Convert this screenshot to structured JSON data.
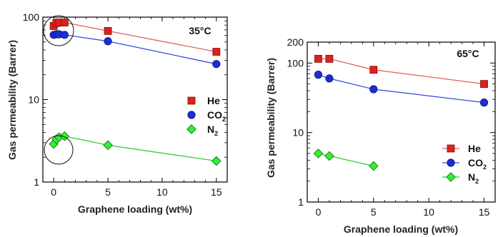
{
  "chart_data": [
    {
      "type": "line",
      "annotation": "35°C",
      "xlabel": "Graphene loading (wt%)",
      "ylabel": "Gas permeability (Barrer)",
      "xlim": [
        -1,
        16
      ],
      "ylim": [
        1,
        100
      ],
      "yscale": "log",
      "xticks": [
        "0",
        "5",
        "10",
        "15"
      ],
      "yticks": [
        "1",
        "10",
        "100"
      ],
      "legend_position": "center-right",
      "legend_lines": false,
      "series": [
        {
          "name": "He",
          "sub": "",
          "marker": "square",
          "color": "#e0201b",
          "line_color": "#e06060",
          "x": [
            0,
            0.25,
            0.5,
            1,
            5,
            15
          ],
          "y": [
            78,
            85,
            86,
            86,
            68,
            38
          ]
        },
        {
          "name": "CO",
          "sub": "2",
          "marker": "circle",
          "color": "#1a2fd6",
          "line_color": "#3a4ae0",
          "x": [
            0,
            0.25,
            0.5,
            1,
            5,
            15
          ],
          "y": [
            61,
            62,
            62,
            61,
            51,
            27
          ]
        },
        {
          "name": "N",
          "sub": "2",
          "marker": "diamond",
          "color": "#33ee33",
          "line_color": "#33cc33",
          "x": [
            0,
            0.25,
            0.5,
            1,
            5,
            15
          ],
          "y": [
            2.9,
            3.3,
            3.5,
            3.6,
            2.8,
            1.8
          ]
        }
      ]
    },
    {
      "type": "line",
      "annotation": "65°C",
      "xlabel": "Graphene loading (wt%)",
      "ylabel": "Gas permeability (Barrer)",
      "xlim": [
        -1,
        16
      ],
      "ylim": [
        1,
        200
      ],
      "yscale": "log",
      "xticks": [
        "0",
        "5",
        "10",
        "15"
      ],
      "yticks": [
        "1",
        "10",
        "100",
        "200"
      ],
      "legend_position": "bottom-right",
      "legend_lines": true,
      "series": [
        {
          "name": "He",
          "sub": "",
          "marker": "square",
          "color": "#e0201b",
          "line_color": "#e06060",
          "x": [
            0,
            1,
            5,
            15
          ],
          "y": [
            115,
            115,
            80,
            50
          ]
        },
        {
          "name": "CO",
          "sub": "2",
          "marker": "circle",
          "color": "#1a2fd6",
          "line_color": "#3a4ae0",
          "x": [
            0,
            1,
            5,
            15
          ],
          "y": [
            68,
            60,
            42,
            27
          ]
        },
        {
          "name": "N",
          "sub": "2",
          "marker": "diamond",
          "color": "#33ee33",
          "line_color": "#33cc33",
          "x": [
            0,
            1,
            5
          ],
          "y": [
            5.0,
            4.6,
            3.3
          ]
        }
      ]
    }
  ]
}
